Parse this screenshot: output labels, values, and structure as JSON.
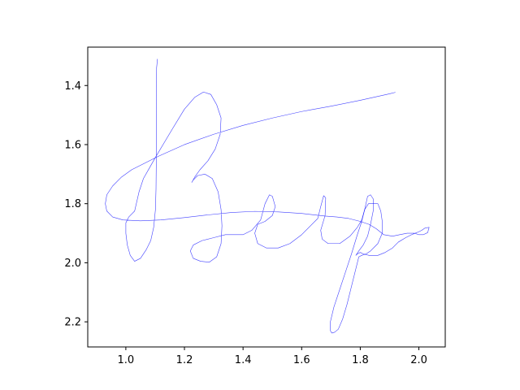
{
  "chart_data": {
    "type": "line",
    "title": "",
    "xlabel": "",
    "ylabel": "",
    "xlim": [
      0.87,
      2.09
    ],
    "ylim": [
      1.27,
      2.285
    ],
    "y_inverted": true,
    "grid": false,
    "legend": "none",
    "x_ticks": [
      1.0,
      1.2,
      1.4,
      1.6,
      1.8,
      2.0
    ],
    "y_ticks": [
      1.4,
      1.6,
      1.8,
      2.0,
      2.2
    ],
    "x_tick_labels": [
      "1.0",
      "1.2",
      "1.4",
      "1.6",
      "1.8",
      "2.0"
    ],
    "y_tick_labels": [
      "1.4",
      "1.6",
      "1.8",
      "2.0",
      "2.2"
    ],
    "series": [
      {
        "color": "#0000ff",
        "points": [
          [
            1.108,
            1.31
          ],
          [
            1.105,
            1.34
          ],
          [
            1.104,
            1.5
          ],
          [
            1.104,
            1.65
          ],
          [
            1.103,
            1.75
          ],
          [
            1.101,
            1.82
          ],
          [
            1.095,
            1.88
          ],
          [
            1.085,
            1.925
          ],
          [
            1.07,
            1.955
          ],
          [
            1.05,
            1.985
          ],
          [
            1.03,
            1.995
          ],
          [
            1.015,
            1.975
          ],
          [
            1.005,
            1.94
          ],
          [
            1.0,
            1.9
          ],
          [
            1.0,
            1.865
          ],
          [
            1.01,
            1.845
          ],
          [
            1.03,
            1.825
          ],
          [
            1.045,
            1.76
          ],
          [
            1.06,
            1.715
          ],
          [
            1.08,
            1.68
          ],
          [
            1.1,
            1.645
          ],
          [
            1.13,
            1.595
          ],
          [
            1.16,
            1.545
          ],
          [
            1.2,
            1.48
          ],
          [
            1.235,
            1.44
          ],
          [
            1.265,
            1.422
          ],
          [
            1.29,
            1.43
          ],
          [
            1.31,
            1.465
          ],
          [
            1.325,
            1.51
          ],
          [
            1.322,
            1.565
          ],
          [
            1.305,
            1.615
          ],
          [
            1.28,
            1.655
          ],
          [
            1.253,
            1.685
          ],
          [
            1.235,
            1.71
          ],
          [
            1.225,
            1.728
          ],
          [
            1.23,
            1.72
          ],
          [
            1.245,
            1.705
          ],
          [
            1.27,
            1.7
          ],
          [
            1.295,
            1.715
          ],
          [
            1.315,
            1.76
          ],
          [
            1.325,
            1.82
          ],
          [
            1.328,
            1.875
          ],
          [
            1.325,
            1.935
          ],
          [
            1.31,
            1.98
          ],
          [
            1.285,
            1.998
          ],
          [
            1.255,
            1.995
          ],
          [
            1.23,
            1.985
          ],
          [
            1.22,
            1.96
          ],
          [
            1.23,
            1.94
          ],
          [
            1.26,
            1.925
          ],
          [
            1.3,
            1.915
          ],
          [
            1.34,
            1.905
          ],
          [
            1.37,
            1.905
          ],
          [
            1.4,
            1.905
          ],
          [
            1.43,
            1.89
          ],
          [
            1.46,
            1.855
          ],
          [
            1.475,
            1.8
          ],
          [
            1.49,
            1.77
          ],
          [
            1.5,
            1.775
          ],
          [
            1.51,
            1.81
          ],
          [
            1.5,
            1.84
          ],
          [
            1.475,
            1.86
          ],
          [
            1.45,
            1.87
          ],
          [
            1.44,
            1.9
          ],
          [
            1.45,
            1.935
          ],
          [
            1.48,
            1.95
          ],
          [
            1.52,
            1.95
          ],
          [
            1.56,
            1.935
          ],
          [
            1.6,
            1.905
          ],
          [
            1.63,
            1.875
          ],
          [
            1.655,
            1.85
          ],
          [
            1.665,
            1.81
          ],
          [
            1.675,
            1.773
          ],
          [
            1.682,
            1.78
          ],
          [
            1.68,
            1.84
          ],
          [
            1.665,
            1.89
          ],
          [
            1.67,
            1.92
          ],
          [
            1.69,
            1.935
          ],
          [
            1.73,
            1.935
          ],
          [
            1.765,
            1.91
          ],
          [
            1.79,
            1.88
          ],
          [
            1.805,
            1.855
          ],
          [
            1.815,
            1.82
          ],
          [
            1.825,
            1.775
          ],
          [
            1.835,
            1.77
          ],
          [
            1.845,
            1.785
          ],
          [
            1.845,
            1.82
          ],
          [
            1.835,
            1.87
          ],
          [
            1.825,
            1.91
          ],
          [
            1.81,
            1.94
          ],
          [
            1.795,
            1.96
          ],
          [
            1.785,
            1.975
          ],
          [
            1.79,
            1.97
          ],
          [
            1.8,
            1.965
          ],
          [
            1.81,
            1.97
          ],
          [
            1.83,
            1.975
          ],
          [
            1.86,
            1.975
          ],
          [
            1.885,
            1.965
          ],
          [
            1.91,
            1.95
          ],
          [
            1.93,
            1.93
          ],
          [
            1.955,
            1.915
          ],
          [
            1.975,
            1.905
          ],
          [
            2.0,
            1.895
          ],
          [
            2.01,
            1.89
          ],
          [
            2.02,
            1.883
          ],
          [
            2.035,
            1.88
          ],
          [
            2.03,
            1.898
          ],
          [
            2.015,
            1.905
          ],
          [
            2.0,
            1.905
          ],
          [
            1.985,
            1.9
          ],
          [
            1.96,
            1.9
          ],
          [
            1.935,
            1.905
          ],
          [
            1.91,
            1.91
          ],
          [
            1.88,
            1.905
          ],
          [
            1.855,
            1.885
          ],
          [
            1.83,
            1.87
          ],
          [
            1.8,
            1.86
          ],
          [
            1.76,
            1.85
          ],
          [
            1.72,
            1.845
          ],
          [
            1.68,
            1.842
          ],
          [
            1.6,
            1.833
          ],
          [
            1.52,
            1.828
          ],
          [
            1.44,
            1.826
          ],
          [
            1.36,
            1.83
          ],
          [
            1.28,
            1.838
          ],
          [
            1.2,
            1.847
          ],
          [
            1.12,
            1.855
          ],
          [
            1.05,
            1.858
          ],
          [
            0.99,
            1.855
          ],
          [
            0.955,
            1.845
          ],
          [
            0.935,
            1.825
          ],
          [
            0.93,
            1.8
          ],
          [
            0.935,
            1.77
          ],
          [
            0.955,
            1.74
          ],
          [
            0.985,
            1.71
          ],
          [
            1.02,
            1.685
          ],
          [
            1.06,
            1.665
          ],
          [
            1.11,
            1.64
          ],
          [
            1.2,
            1.6
          ],
          [
            1.3,
            1.565
          ],
          [
            1.4,
            1.535
          ],
          [
            1.5,
            1.51
          ],
          [
            1.6,
            1.488
          ],
          [
            1.7,
            1.47
          ],
          [
            1.8,
            1.45
          ],
          [
            1.9,
            1.428
          ],
          [
            1.92,
            1.423
          ]
        ]
      },
      {
        "color": "#0000ff",
        "points": [
          [
            1.713,
            2.235
          ],
          [
            1.703,
            2.238
          ],
          [
            1.698,
            2.23
          ],
          [
            1.698,
            2.2
          ],
          [
            1.71,
            2.15
          ],
          [
            1.73,
            2.09
          ],
          [
            1.75,
            2.03
          ],
          [
            1.77,
            1.97
          ],
          [
            1.79,
            1.905
          ],
          [
            1.805,
            1.86
          ],
          [
            1.815,
            1.82
          ],
          [
            1.828,
            1.8
          ],
          [
            1.845,
            1.8
          ],
          [
            1.86,
            1.8
          ],
          [
            1.87,
            1.825
          ],
          [
            1.875,
            1.86
          ],
          [
            1.875,
            1.9
          ],
          [
            1.86,
            1.935
          ],
          [
            1.835,
            1.96
          ],
          [
            1.82,
            1.97
          ],
          [
            1.805,
            1.975
          ],
          [
            1.795,
            1.98
          ],
          [
            1.79,
            2.0
          ],
          [
            1.78,
            2.04
          ],
          [
            1.77,
            2.08
          ],
          [
            1.755,
            2.14
          ],
          [
            1.74,
            2.19
          ],
          [
            1.725,
            2.225
          ],
          [
            1.713,
            2.235
          ]
        ]
      }
    ]
  }
}
